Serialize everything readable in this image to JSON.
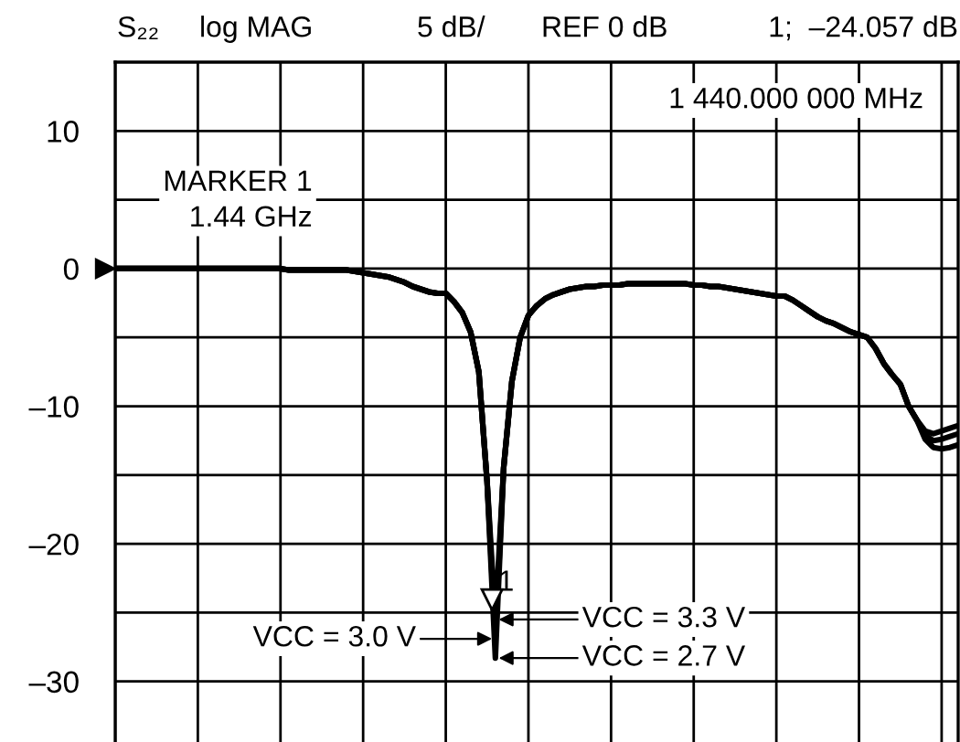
{
  "chart_data": {
    "type": "line",
    "title": "S₂₂",
    "annotations": [
      "log MAG",
      "5 dB/",
      "REF 0 dB",
      "1;  –24.057 dB",
      "1 440.000 000 MHz",
      "MARKER 1\n1.44 GHz",
      {
        "text": "1",
        "y": -24.057
      }
    ],
    "categories": [
      null,
      null,
      null,
      null,
      null,
      null,
      null,
      null,
      null,
      null,
      null,
      null,
      null,
      null,
      null,
      null,
      null,
      null,
      null,
      null,
      null,
      null,
      null,
      null,
      null,
      null,
      null,
      null,
      null,
      null,
      null,
      null,
      null,
      null,
      null,
      null,
      null,
      null,
      null,
      null,
      null,
      null,
      null,
      null,
      null,
      null,
      null,
      null,
      null,
      null,
      null,
      null,
      null,
      null,
      null,
      null,
      null,
      null,
      null,
      null,
      null,
      null,
      null,
      null,
      null,
      null,
      null,
      null,
      null,
      null,
      null,
      null,
      null,
      null,
      null,
      null,
      null,
      null,
      null,
      null,
      null,
      null,
      null,
      null,
      null,
      null,
      null,
      null,
      null,
      null,
      null,
      null,
      null,
      null,
      null,
      null,
      null,
      null,
      null,
      null,
      null,
      null,
      null
    ],
    "series": [
      {
        "name": "VCC = 3.3 V",
        "color": "#000000",
        "values": [
          0,
          0,
          0,
          0,
          0,
          0,
          0,
          0,
          0,
          0,
          0,
          0,
          0,
          0,
          0,
          0,
          0,
          0,
          0,
          0,
          0,
          -0.1,
          -0.1,
          -0.1,
          -0.1,
          -0.1,
          -0.1,
          -0.1,
          -0.1,
          -0.2,
          -0.3,
          -0.4,
          -0.5,
          -0.6,
          -0.8,
          -1.0,
          -1.3,
          -1.5,
          -1.7,
          -1.8,
          -1.8,
          -2.4,
          -3.2,
          -4.6,
          -7.5,
          -15.5,
          -25.5,
          -14.5,
          -8.2,
          -5.0,
          -3.4,
          -2.7,
          -2.2,
          -1.9,
          -1.7,
          -1.5,
          -1.4,
          -1.3,
          -1.3,
          -1.2,
          -1.2,
          -1.2,
          -1.1,
          -1.1,
          -1.1,
          -1.1,
          -1.1,
          -1.1,
          -1.1,
          -1.1,
          -1.2,
          -1.2,
          -1.3,
          -1.3,
          -1.4,
          -1.5,
          -1.6,
          -1.7,
          -1.8,
          -1.9,
          -2.0,
          -2.0,
          -2.3,
          -2.7,
          -3.1,
          -3.5,
          -3.8,
          -4.0,
          -4.3,
          -4.6,
          -4.8,
          -5.0,
          -5.8,
          -6.9,
          -7.7,
          -8.4,
          -10.0,
          -11.0,
          -11.8,
          -12.0,
          -11.8,
          -11.6,
          -11.4
        ]
      },
      {
        "name": "VCC = 3.0 V",
        "color": "#000000",
        "values": [
          0,
          0,
          0,
          0,
          0,
          0,
          0,
          0,
          0,
          0,
          0,
          0,
          0,
          0,
          0,
          0,
          0,
          0,
          0,
          0,
          0,
          -0.1,
          -0.1,
          -0.1,
          -0.1,
          -0.1,
          -0.1,
          -0.1,
          -0.1,
          -0.2,
          -0.3,
          -0.4,
          -0.5,
          -0.6,
          -0.8,
          -1.0,
          -1.3,
          -1.5,
          -1.7,
          -1.8,
          -1.8,
          -2.4,
          -3.2,
          -4.6,
          -7.5,
          -15.5,
          -26.9,
          -14.5,
          -8.2,
          -5.0,
          -3.4,
          -2.7,
          -2.2,
          -1.9,
          -1.7,
          -1.5,
          -1.4,
          -1.3,
          -1.3,
          -1.2,
          -1.2,
          -1.2,
          -1.1,
          -1.1,
          -1.1,
          -1.1,
          -1.1,
          -1.1,
          -1.1,
          -1.1,
          -1.2,
          -1.2,
          -1.3,
          -1.3,
          -1.4,
          -1.5,
          -1.6,
          -1.7,
          -1.8,
          -1.9,
          -2.0,
          -2.0,
          -2.3,
          -2.7,
          -3.1,
          -3.5,
          -3.8,
          -4.0,
          -4.3,
          -4.6,
          -4.8,
          -5.0,
          -5.8,
          -6.9,
          -7.7,
          -8.4,
          -10.0,
          -11.0,
          -12.1,
          -12.5,
          -12.4,
          -12.2,
          -12.0
        ]
      },
      {
        "name": "VCC = 2.7 V",
        "color": "#000000",
        "values": [
          0,
          0,
          0,
          0,
          0,
          0,
          0,
          0,
          0,
          0,
          0,
          0,
          0,
          0,
          0,
          0,
          0,
          0,
          0,
          0,
          0,
          -0.1,
          -0.1,
          -0.1,
          -0.1,
          -0.1,
          -0.1,
          -0.1,
          -0.1,
          -0.2,
          -0.3,
          -0.4,
          -0.5,
          -0.6,
          -0.8,
          -1.0,
          -1.3,
          -1.5,
          -1.7,
          -1.8,
          -1.8,
          -2.4,
          -3.2,
          -4.6,
          -7.5,
          -15.5,
          -28.3,
          -14.5,
          -8.2,
          -5.0,
          -3.4,
          -2.7,
          -2.2,
          -1.9,
          -1.7,
          -1.5,
          -1.4,
          -1.3,
          -1.3,
          -1.2,
          -1.2,
          -1.2,
          -1.1,
          -1.1,
          -1.1,
          -1.1,
          -1.1,
          -1.1,
          -1.1,
          -1.1,
          -1.2,
          -1.2,
          -1.3,
          -1.3,
          -1.4,
          -1.5,
          -1.6,
          -1.7,
          -1.8,
          -1.9,
          -2.0,
          -2.0,
          -2.3,
          -2.7,
          -3.1,
          -3.5,
          -3.8,
          -4.0,
          -4.3,
          -4.6,
          -4.8,
          -5.0,
          -5.8,
          -6.9,
          -7.7,
          -8.4,
          -10.0,
          -11.0,
          -12.4,
          -13.0,
          -13.1,
          -13.0,
          -12.8
        ]
      }
    ],
    "ylim": [
      -34.4,
      15
    ],
    "yticks": [
      {
        "value": -30,
        "label": "–30"
      },
      {
        "value": -25,
        "label": null
      },
      {
        "value": -20,
        "label": "–20"
      },
      {
        "value": -15,
        "label": null
      },
      {
        "value": -10,
        "label": "–10"
      },
      {
        "value": -5,
        "label": null
      },
      0,
      {
        "value": 5,
        "label": null
      },
      10
    ],
    "grid": true,
    "legend": "bottom",
    "marker": "none",
    "line_style": "solid"
  }
}
